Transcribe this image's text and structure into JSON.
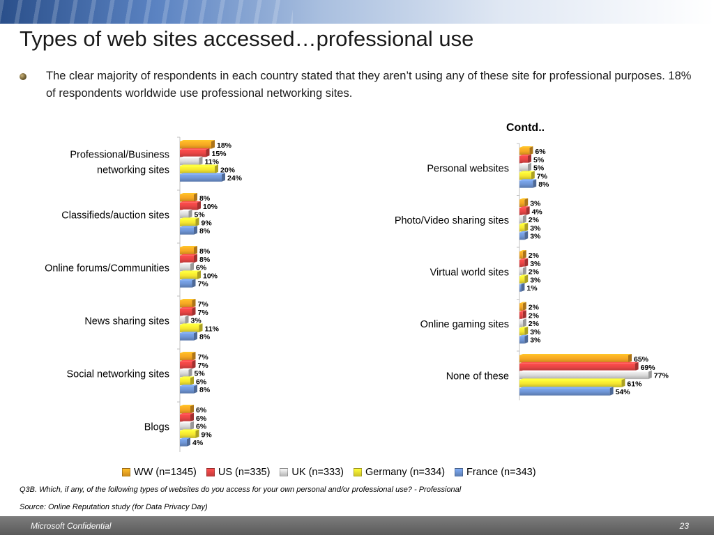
{
  "title": "Types of web sites accessed…professional use",
  "bullet_text": "The clear majority of respondents in each country stated that they aren’t using any of these site for professional purposes. 18% of respondents worldwide use professional networking sites.",
  "contd_label": "Contd..",
  "chart_data": {
    "type": "bar",
    "orientation": "horizontal",
    "series": [
      {
        "name": "WW (n=1345)",
        "color": "#f5a623"
      },
      {
        "name": "US (n=335)",
        "color": "#e84545"
      },
      {
        "name": "UK (n=333)",
        "color": "#d9d9d9"
      },
      {
        "name": "Germany (n=334)",
        "color": "#f5e631"
      },
      {
        "name": "France (n=343)",
        "color": "#6f96d6"
      }
    ],
    "panels": [
      {
        "categories": [
          {
            "label": [
              "Professional/Business",
              "networking sites"
            ],
            "values": [
              18,
              15,
              11,
              20,
              24
            ]
          },
          {
            "label": [
              "Classifieds/auction sites"
            ],
            "values": [
              8,
              10,
              5,
              9,
              8
            ]
          },
          {
            "label": [
              "Online forums/Communities"
            ],
            "values": [
              8,
              8,
              6,
              10,
              7
            ]
          },
          {
            "label": [
              "News sharing sites"
            ],
            "values": [
              7,
              7,
              3,
              11,
              8
            ]
          },
          {
            "label": [
              "Social networking sites"
            ],
            "values": [
              7,
              7,
              5,
              6,
              8
            ]
          },
          {
            "label": [
              "Blogs"
            ],
            "values": [
              6,
              6,
              6,
              9,
              4
            ]
          }
        ]
      },
      {
        "categories": [
          {
            "label": [
              "Personal websites"
            ],
            "values": [
              6,
              5,
              5,
              7,
              8
            ]
          },
          {
            "label": [
              "Photo/Video sharing sites"
            ],
            "values": [
              3,
              4,
              2,
              3,
              3
            ]
          },
          {
            "label": [
              "Virtual world sites"
            ],
            "values": [
              2,
              3,
              2,
              3,
              1
            ]
          },
          {
            "label": [
              "Online gaming sites"
            ],
            "values": [
              2,
              2,
              2,
              3,
              3
            ]
          },
          {
            "label": [
              "None of these"
            ],
            "values": [
              65,
              69,
              77,
              61,
              54
            ]
          }
        ]
      }
    ],
    "value_suffix": "%",
    "legend_position": "bottom",
    "grid": false
  },
  "question_note": "Q3B. Which, if any, of the following types of websites do you access for your own personal and/or professional use?  - Professional",
  "source_note": "Source: Online Reputation study (for Data Privacy Day)",
  "footer": {
    "confidential": "Microsoft Confidential",
    "page_number": "23"
  }
}
